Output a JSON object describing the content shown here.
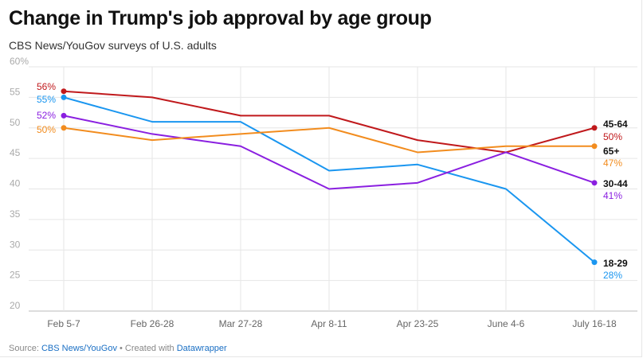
{
  "title": "Change in Trump's job approval by age group",
  "subtitle": "CBS News/YouGov surveys of U.S. adults",
  "footer": {
    "source_label": "Source: ",
    "source_name": "CBS News/YouGov",
    "separator": " • Created with ",
    "tool_name": "Datawrapper"
  },
  "chart_data": {
    "type": "line",
    "x": [
      "Feb 5-7",
      "Feb 26-28",
      "Mar 27-28",
      "Apr 8-11",
      "Apr 23-25",
      "June 4-6",
      "July 16-18"
    ],
    "y_ticks": [
      "60%",
      "55",
      "50",
      "45",
      "40",
      "35",
      "30",
      "25",
      "20"
    ],
    "ylim": [
      20,
      60
    ],
    "grid": true,
    "series": [
      {
        "name": "45-64",
        "color": "#c0191c",
        "values": [
          56,
          55,
          52,
          52,
          48,
          46,
          50
        ],
        "start_label": "56%",
        "end_label": "50%"
      },
      {
        "name": "18-29",
        "color": "#1a96f0",
        "values": [
          55,
          51,
          51,
          43,
          44,
          40,
          28
        ],
        "start_label": "55%",
        "end_label": "28%"
      },
      {
        "name": "30-44",
        "color": "#8a1fe0",
        "values": [
          52,
          49,
          47,
          40,
          41,
          46,
          41
        ],
        "start_label": "52%",
        "end_label": "41%"
      },
      {
        "name": "65+",
        "color": "#f28c1e",
        "values": [
          50,
          48,
          49,
          50,
          46,
          47,
          47
        ],
        "start_label": "50%",
        "end_label": "47%"
      }
    ]
  }
}
